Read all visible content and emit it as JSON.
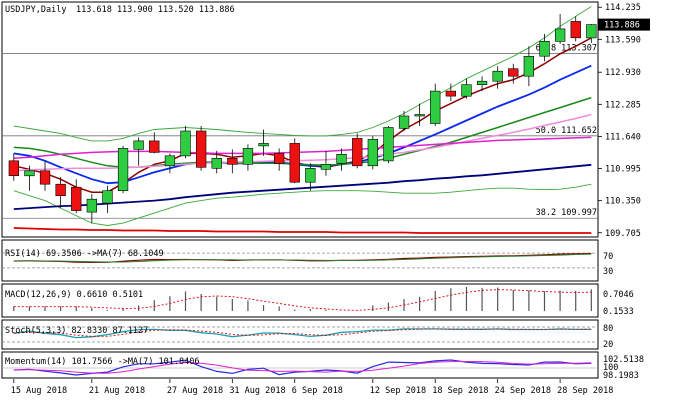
{
  "header": {
    "symbol": "USDJPY",
    "timeframe": "Daily",
    "ohlc": "113.618 113.900 113.520 113.886"
  },
  "colors": {
    "bull": "#2ecc40",
    "bear": "#ee1111",
    "ma_fast": "#8b0000",
    "ma_blue": "#0a28f0",
    "ma_green": "#1a8a1a",
    "ma_pink": "#f08cdc",
    "ma_magenta": "#e020d0",
    "ma_navy": "#00007a",
    "ma_red": "#dd0000",
    "band": "#3aa83a",
    "price_badge_bg": "#000000",
    "price_badge_fg": "#ffffff"
  },
  "chart_data": [
    {
      "type": "candlestick",
      "y_ticks": [
        "114.235",
        "113.590",
        "112.930",
        "112.285",
        "111.640",
        "110.995",
        "110.350",
        "109.705"
      ],
      "ylim": [
        109.66,
        114.3
      ],
      "current_price": "113.886",
      "x_labels": [
        "15 Aug 2018",
        "21 Aug 2018",
        "27 Aug 2018",
        "31 Aug 2018",
        "6 Sep 2018",
        "12 Sep 2018",
        "18 Sep 2018",
        "24 Sep 2018",
        "28 Sep 2018"
      ],
      "x_label_index": [
        0,
        5,
        10,
        14,
        18,
        23,
        27,
        31,
        35
      ],
      "fib_levels": [
        {
          "label": "61.8 113.307",
          "value": 113.307
        },
        {
          "label": "50.0 111.652",
          "value": 111.652
        },
        {
          "label": "38.2 109.997",
          "value": 109.997
        }
      ],
      "candles": [
        {
          "o": 111.15,
          "h": 111.3,
          "l": 110.75,
          "c": 110.85
        },
        {
          "o": 110.85,
          "h": 111.05,
          "l": 110.55,
          "c": 110.95
        },
        {
          "o": 110.95,
          "h": 111.15,
          "l": 110.55,
          "c": 110.68
        },
        {
          "o": 110.68,
          "h": 110.82,
          "l": 110.2,
          "c": 110.45
        },
        {
          "o": 110.62,
          "h": 110.78,
          "l": 110.1,
          "c": 110.15
        },
        {
          "o": 110.12,
          "h": 110.48,
          "l": 109.9,
          "c": 110.38
        },
        {
          "o": 110.3,
          "h": 110.65,
          "l": 110.1,
          "c": 110.55
        },
        {
          "o": 110.55,
          "h": 111.45,
          "l": 110.5,
          "c": 111.4
        },
        {
          "o": 111.38,
          "h": 111.62,
          "l": 111.05,
          "c": 111.55
        },
        {
          "o": 111.55,
          "h": 111.72,
          "l": 111.3,
          "c": 111.32
        },
        {
          "o": 111.05,
          "h": 111.3,
          "l": 110.9,
          "c": 111.25
        },
        {
          "o": 111.25,
          "h": 111.85,
          "l": 111.2,
          "c": 111.75
        },
        {
          "o": 111.75,
          "h": 111.85,
          "l": 110.95,
          "c": 111.02
        },
        {
          "o": 111.0,
          "h": 111.35,
          "l": 110.9,
          "c": 111.2
        },
        {
          "o": 111.2,
          "h": 111.38,
          "l": 110.9,
          "c": 111.08
        },
        {
          "o": 111.08,
          "h": 111.48,
          "l": 110.95,
          "c": 111.4
        },
        {
          "o": 111.45,
          "h": 111.78,
          "l": 111.25,
          "c": 111.5
        },
        {
          "o": 111.3,
          "h": 111.4,
          "l": 110.95,
          "c": 111.1
        },
        {
          "o": 111.5,
          "h": 111.6,
          "l": 110.7,
          "c": 110.72
        },
        {
          "o": 110.72,
          "h": 111.1,
          "l": 110.55,
          "c": 111.0
        },
        {
          "o": 110.98,
          "h": 111.35,
          "l": 110.85,
          "c": 111.08
        },
        {
          "o": 111.1,
          "h": 111.4,
          "l": 110.95,
          "c": 111.28
        },
        {
          "o": 111.6,
          "h": 111.7,
          "l": 111.0,
          "c": 111.05
        },
        {
          "o": 111.05,
          "h": 111.65,
          "l": 110.98,
          "c": 111.58
        },
        {
          "o": 111.15,
          "h": 111.85,
          "l": 111.1,
          "c": 111.82
        },
        {
          "o": 111.8,
          "h": 112.15,
          "l": 111.75,
          "c": 112.05
        },
        {
          "o": 112.05,
          "h": 112.3,
          "l": 111.85,
          "c": 112.08
        },
        {
          "o": 111.9,
          "h": 112.7,
          "l": 111.85,
          "c": 112.55
        },
        {
          "o": 112.55,
          "h": 112.7,
          "l": 112.35,
          "c": 112.45
        },
        {
          "o": 112.45,
          "h": 112.8,
          "l": 112.4,
          "c": 112.68
        },
        {
          "o": 112.68,
          "h": 112.85,
          "l": 112.55,
          "c": 112.75
        },
        {
          "o": 112.75,
          "h": 113.05,
          "l": 112.6,
          "c": 112.95
        },
        {
          "o": 113.0,
          "h": 113.1,
          "l": 112.7,
          "c": 112.85
        },
        {
          "o": 112.85,
          "h": 113.45,
          "l": 112.65,
          "c": 113.25
        },
        {
          "o": 113.25,
          "h": 113.7,
          "l": 113.15,
          "c": 113.55
        },
        {
          "o": 113.55,
          "h": 114.1,
          "l": 113.5,
          "c": 113.8
        },
        {
          "o": 113.95,
          "h": 114.05,
          "l": 113.55,
          "c": 113.62
        },
        {
          "o": 113.618,
          "h": 113.9,
          "l": 113.52,
          "c": 113.886
        }
      ],
      "ma": [
        {
          "key": "ma_fast",
          "values": [
            111.05,
            110.98,
            110.9,
            110.78,
            110.62,
            110.52,
            110.52,
            110.7,
            110.92,
            111.08,
            111.15,
            111.3,
            111.3,
            111.28,
            111.22,
            111.25,
            111.3,
            111.25,
            111.12,
            111.05,
            111.02,
            111.08,
            111.15,
            111.3,
            111.55,
            111.78,
            111.95,
            112.15,
            112.3,
            112.45,
            112.58,
            112.7,
            112.78,
            112.92,
            113.1,
            113.3,
            113.45,
            113.62
          ]
        },
        {
          "key": "ma_blue",
          "values": [
            111.3,
            111.25,
            111.15,
            111.02,
            110.9,
            110.78,
            110.7,
            110.72,
            110.82,
            110.92,
            111.0,
            111.08,
            111.12,
            111.12,
            111.1,
            111.1,
            111.12,
            111.12,
            111.08,
            111.05,
            111.05,
            111.08,
            111.12,
            111.2,
            111.3,
            111.42,
            111.55,
            111.68,
            111.82,
            111.96,
            112.1,
            112.24,
            112.36,
            112.48,
            112.62,
            112.78,
            112.92,
            113.06
          ]
        },
        {
          "key": "ma_green",
          "values": [
            111.42,
            111.4,
            111.35,
            111.28,
            111.2,
            111.12,
            111.05,
            111.02,
            111.02,
            111.05,
            111.08,
            111.1,
            111.12,
            111.12,
            111.1,
            111.1,
            111.1,
            111.1,
            111.08,
            111.07,
            111.06,
            111.08,
            111.1,
            111.14,
            111.2,
            111.28,
            111.36,
            111.44,
            111.52,
            111.62,
            111.72,
            111.82,
            111.92,
            112.02,
            112.12,
            112.22,
            112.32,
            112.42
          ]
        },
        {
          "key": "ma_pink",
          "values": [
            110.95,
            110.97,
            110.98,
            110.99,
            111.0,
            111.0,
            111.0,
            111.01,
            111.02,
            111.04,
            111.06,
            111.08,
            111.1,
            111.11,
            111.12,
            111.13,
            111.14,
            111.15,
            111.15,
            111.16,
            111.17,
            111.19,
            111.21,
            111.24,
            111.28,
            111.32,
            111.37,
            111.42,
            111.48,
            111.54,
            111.6,
            111.66,
            111.72,
            111.79,
            111.86,
            111.93,
            112.0,
            112.08
          ]
        },
        {
          "key": "ma_magenta",
          "values": [
            111.2,
            111.22,
            111.25,
            111.28,
            111.3,
            111.32,
            111.33,
            111.34,
            111.34,
            111.34,
            111.33,
            111.32,
            111.31,
            111.3,
            111.3,
            111.3,
            111.3,
            111.31,
            111.32,
            111.33,
            111.34,
            111.36,
            111.38,
            111.4,
            111.42,
            111.44,
            111.46,
            111.48,
            111.5,
            111.52,
            111.54,
            111.56,
            111.57,
            111.58,
            111.59,
            111.6,
            111.61,
            111.62
          ]
        },
        {
          "key": "ma_navy",
          "values": [
            110.18,
            110.2,
            110.22,
            110.24,
            110.25,
            110.27,
            110.29,
            110.31,
            110.33,
            110.35,
            110.38,
            110.42,
            110.45,
            110.48,
            110.51,
            110.53,
            110.55,
            110.57,
            110.59,
            110.61,
            110.63,
            110.65,
            110.67,
            110.69,
            110.71,
            110.74,
            110.76,
            110.79,
            110.81,
            110.84,
            110.86,
            110.89,
            110.92,
            110.95,
            110.98,
            111.01,
            111.04,
            111.07
          ]
        },
        {
          "key": "ma_red",
          "values": [
            109.8,
            109.79,
            109.78,
            109.77,
            109.77,
            109.76,
            109.76,
            109.75,
            109.75,
            109.75,
            109.74,
            109.74,
            109.74,
            109.73,
            109.73,
            109.73,
            109.73,
            109.72,
            109.72,
            109.72,
            109.72,
            109.71,
            109.71,
            109.71,
            109.71,
            109.71,
            109.7,
            109.7,
            109.7,
            109.7,
            109.7,
            109.7,
            109.7,
            109.7,
            109.7,
            109.7,
            109.7,
            109.7
          ]
        }
      ],
      "bands": {
        "upper": [
          111.85,
          111.8,
          111.75,
          111.7,
          111.62,
          111.55,
          111.55,
          111.6,
          111.7,
          111.78,
          111.8,
          111.82,
          111.8,
          111.78,
          111.75,
          111.72,
          111.7,
          111.68,
          111.66,
          111.65,
          111.65,
          111.68,
          111.72,
          111.82,
          111.95,
          112.1,
          112.28,
          112.45,
          112.62,
          112.8,
          112.95,
          113.1,
          113.25,
          113.42,
          113.62,
          113.85,
          114.05,
          114.25
        ],
        "lower": [
          110.55,
          110.45,
          110.35,
          110.2,
          110.05,
          109.9,
          109.85,
          109.9,
          110.0,
          110.1,
          110.2,
          110.3,
          110.35,
          110.4,
          110.42,
          110.45,
          110.48,
          110.5,
          110.52,
          110.54,
          110.55,
          110.55,
          110.55,
          110.54,
          110.52,
          110.5,
          110.5,
          110.5,
          110.52,
          110.55,
          110.58,
          110.6,
          110.6,
          110.58,
          110.57,
          110.58,
          110.62,
          110.68
        ]
      }
    },
    {
      "type": "line",
      "title": "RSI(14) 69.3506  ->MA(7) 68.1049",
      "y_ticks": [
        "70",
        "30"
      ],
      "ylim": [
        0,
        100
      ],
      "levels": [
        70,
        30
      ]
    },
    {
      "type": "bar",
      "title": "MACD(12,26,9) 0.6610 0.5101",
      "y_ticks": [
        "0.7046",
        "0.1533"
      ]
    },
    {
      "type": "line",
      "title": "Stoch(5,3,3) 82.8330 87.1127",
      "y_ticks": [
        "80",
        "20"
      ],
      "ylim": [
        0,
        100
      ],
      "levels": [
        80,
        20
      ]
    },
    {
      "type": "line",
      "title": "Momentum(14) 101.7566  ->MA(7) 101.8406",
      "y_ticks": [
        "102.5138",
        "100",
        "98.1983"
      ]
    }
  ]
}
